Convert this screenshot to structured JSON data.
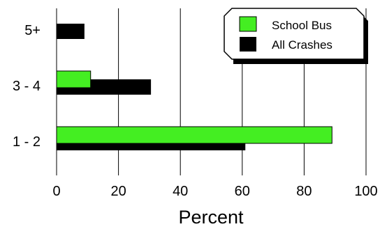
{
  "chart_data": {
    "type": "bar",
    "orientation": "horizontal",
    "categories": [
      "1 - 2",
      "3 - 4",
      "5+"
    ],
    "series": [
      {
        "name": "School Bus",
        "values": [
          89,
          11,
          0
        ],
        "color": "#44ee22"
      },
      {
        "name": "All Crashes",
        "values": [
          61,
          30.5,
          9
        ],
        "color": "#000000"
      }
    ],
    "title": "",
    "xlabel": "Percent",
    "ylabel": "",
    "xlim": [
      0,
      100
    ],
    "xticks": [
      "0",
      "20",
      "40",
      "60",
      "80",
      "100"
    ],
    "grid": "vertical",
    "legend": {
      "placement": "top-right",
      "items": [
        "School Bus",
        "All Crashes"
      ]
    }
  }
}
